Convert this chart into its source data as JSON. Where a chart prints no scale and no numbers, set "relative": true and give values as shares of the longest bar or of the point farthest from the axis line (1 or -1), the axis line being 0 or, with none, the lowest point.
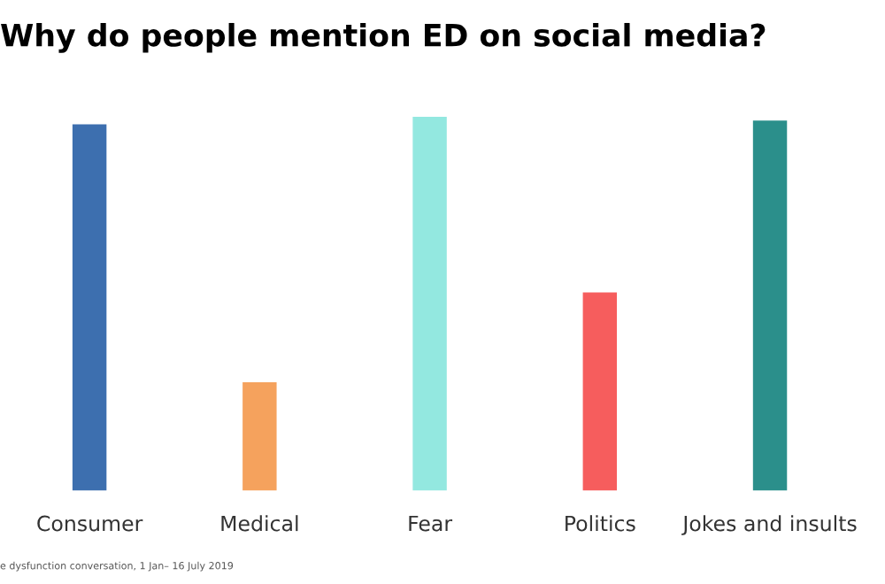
{
  "chart_data": {
    "type": "bar",
    "title": "Why do people mention ED on social media?",
    "categories": [
      "Consumer",
      "Medical",
      "Fear",
      "Politics",
      "Jokes and insults"
    ],
    "values": [
      0.98,
      0.29,
      1,
      0.53,
      0.99
    ],
    "colors": [
      "#3d6faf",
      "#f5a25d",
      "#93e8e0",
      "#f65d5d",
      "#2b8f8b"
    ],
    "relative": true,
    "annotations": [
      "e dysfunction conversation, 1 Jan– 16 July 2019"
    ]
  }
}
